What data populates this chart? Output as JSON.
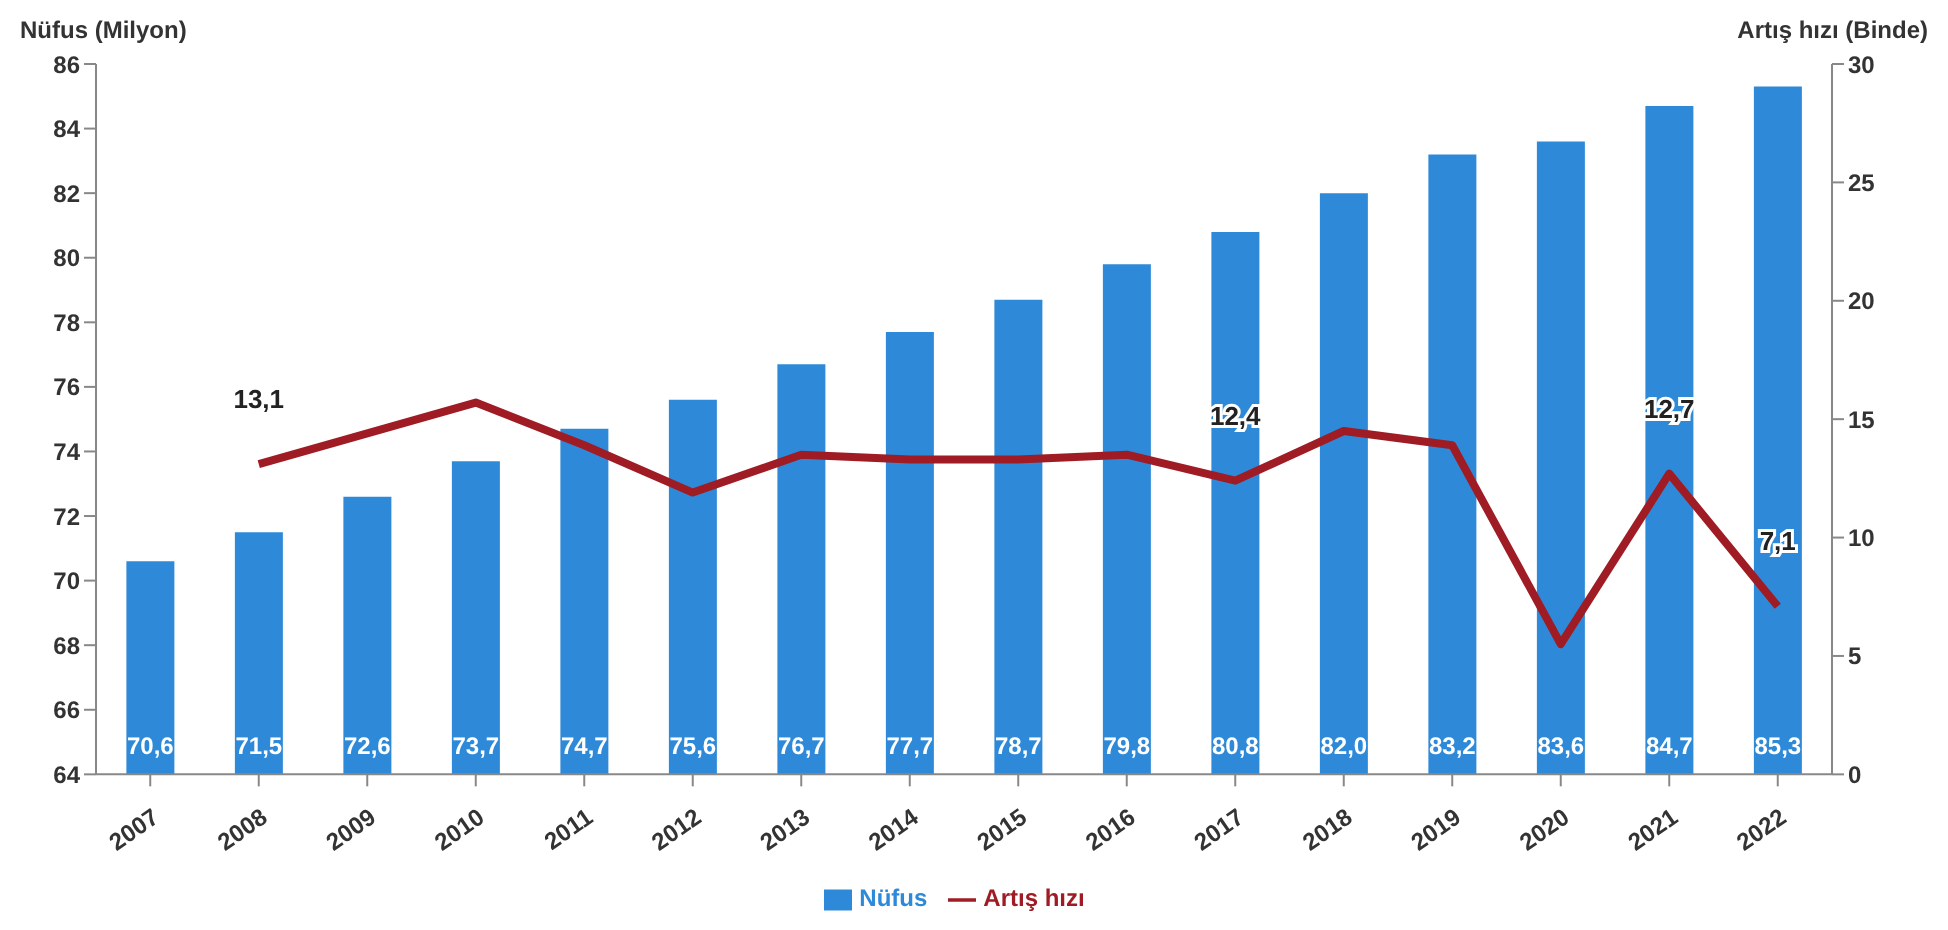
{
  "chart_data": {
    "type": "bar",
    "ylabel": "Nüfus (Milyon)",
    "y2label": "Artış hızı (Binde)",
    "categories": [
      "2007",
      "2008",
      "2009",
      "2010",
      "2011",
      "2012",
      "2013",
      "2014",
      "2015",
      "2016",
      "2017",
      "2018",
      "2019",
      "2020",
      "2021",
      "2022"
    ],
    "series": [
      {
        "name": "Nüfus",
        "color": "#2e8ad8",
        "values": [
          70.6,
          71.5,
          72.6,
          73.7,
          74.7,
          75.6,
          76.7,
          77.7,
          78.7,
          79.8,
          80.8,
          82.0,
          83.2,
          83.6,
          84.7,
          85.3
        ],
        "value_labels": [
          "70,6",
          "71,5",
          "72,6",
          "73,7",
          "74,7",
          "75,6",
          "76,7",
          "77,7",
          "78,7",
          "79,8",
          "80,8",
          "82,0",
          "83,2",
          "83,6",
          "84,7",
          "85,3"
        ]
      },
      {
        "name": "Artış hızı",
        "type": "line",
        "axis": "y2",
        "color": "#a01c24",
        "values": [
          null,
          13.1,
          14.4,
          15.7,
          13.9,
          11.9,
          13.5,
          13.3,
          13.3,
          13.5,
          12.4,
          14.5,
          13.9,
          5.5,
          12.7,
          7.1
        ],
        "value_labels": [
          null,
          "13,1",
          null,
          null,
          null,
          null,
          null,
          null,
          null,
          null,
          "12,4",
          null,
          null,
          null,
          "12,7",
          "7,1"
        ]
      }
    ],
    "ylim": [
      64,
      86
    ],
    "yticks": [
      64,
      66,
      68,
      70,
      72,
      74,
      76,
      78,
      80,
      82,
      84,
      86
    ],
    "y2lim": [
      0,
      30
    ],
    "y2ticks": [
      0,
      5,
      10,
      15,
      20,
      25,
      30
    ],
    "grid": false,
    "legend": "bottom",
    "marker": "none",
    "line_style": "solid"
  }
}
